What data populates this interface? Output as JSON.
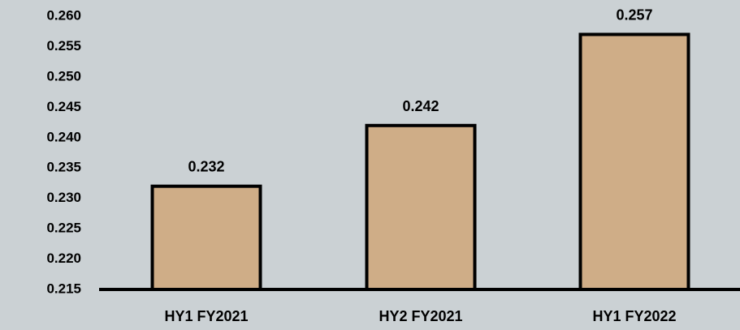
{
  "chart_data": {
    "type": "bar",
    "categories": [
      "HY1 FY2021",
      "HY2 FY2021",
      "HY1 FY2022"
    ],
    "values": [
      0.232,
      0.242,
      0.257
    ],
    "data_labels": [
      "0.232",
      "0.242",
      "0.257"
    ],
    "yticks": [
      "0.260",
      "0.255",
      "0.250",
      "0.245",
      "0.240",
      "0.235",
      "0.230",
      "0.225",
      "0.220",
      "0.215"
    ],
    "ylim": [
      0.215,
      0.26
    ],
    "title": "",
    "xlabel": "",
    "ylabel": "",
    "grid": false,
    "legend": "none",
    "colors": {
      "background": "#cbd1d4",
      "bar_fill": "#cfad87",
      "bar_stroke": "#000000",
      "axis": "#000000",
      "text": "#000000"
    }
  }
}
